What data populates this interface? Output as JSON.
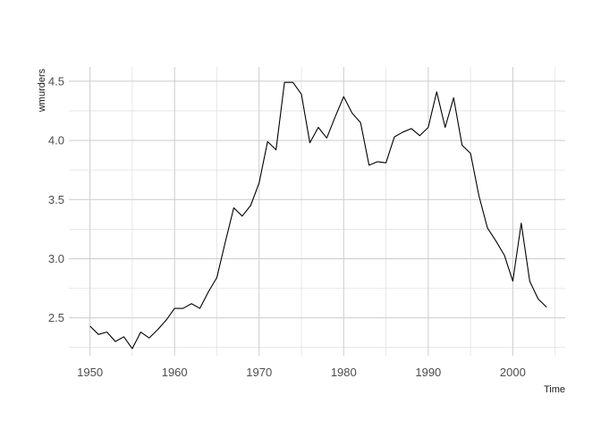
{
  "chart_data": {
    "type": "line",
    "xlabel": "Time",
    "ylabel": "wmurders",
    "xlim": [
      1947.5,
      2006.2
    ],
    "ylim": [
      2.18,
      4.62
    ],
    "x_ticks": [
      1950,
      1960,
      1970,
      1980,
      1990,
      2000
    ],
    "x_tick_labels": [
      "1950",
      "1960",
      "1970",
      "1980",
      "1990",
      "2000"
    ],
    "x_minor_ticks": [
      1955,
      1965,
      1975,
      1985,
      1995,
      2005
    ],
    "y_ticks": [
      2.5,
      3.0,
      3.5,
      4.0,
      4.5
    ],
    "y_tick_labels": [
      "2.5",
      "3.0",
      "3.5",
      "4.0",
      "4.5"
    ],
    "y_minor_ticks": [
      2.25,
      2.75,
      3.25,
      3.75,
      4.25
    ],
    "grid": true,
    "legend": "none",
    "colors": {
      "line": "#000000",
      "grid_major": "#cccccc",
      "grid_minor": "#dedede",
      "tick_label": "#4d4d4d"
    },
    "x": [
      1950,
      1951,
      1952,
      1953,
      1954,
      1955,
      1956,
      1957,
      1958,
      1959,
      1960,
      1961,
      1962,
      1963,
      1964,
      1965,
      1966,
      1967,
      1968,
      1969,
      1970,
      1971,
      1972,
      1973,
      1974,
      1975,
      1976,
      1977,
      1978,
      1979,
      1980,
      1981,
      1982,
      1983,
      1984,
      1985,
      1986,
      1987,
      1988,
      1989,
      1990,
      1991,
      1992,
      1993,
      1994,
      1995,
      1996,
      1997,
      1998,
      1999,
      2000,
      2001,
      2002,
      2003,
      2004
    ],
    "values": [
      2.43,
      2.36,
      2.38,
      2.3,
      2.34,
      2.24,
      2.38,
      2.33,
      2.4,
      2.48,
      2.58,
      2.58,
      2.62,
      2.58,
      2.72,
      2.84,
      3.14,
      3.43,
      3.36,
      3.45,
      3.64,
      3.99,
      3.92,
      4.49,
      4.49,
      4.39,
      3.98,
      4.11,
      4.02,
      4.2,
      4.37,
      4.23,
      4.15,
      3.79,
      3.82,
      3.81,
      4.03,
      4.07,
      4.1,
      4.04,
      4.11,
      4.41,
      4.11,
      4.36,
      3.96,
      3.89,
      3.53,
      3.26,
      3.15,
      3.03,
      2.81,
      3.3,
      2.81,
      2.66,
      2.59
    ]
  }
}
